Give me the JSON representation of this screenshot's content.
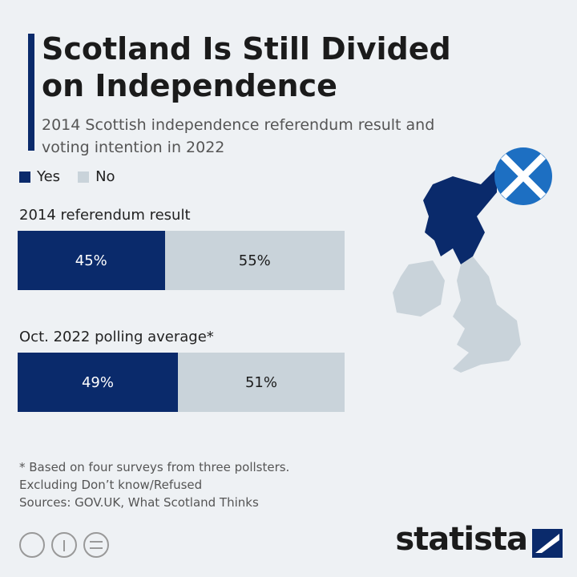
{
  "chart_data": {
    "type": "stacked-bar",
    "title": "Scotland Is Still Divided on Independence",
    "subtitle": "2014 Scottish independence referendum result and voting intention in 2022",
    "categories": [
      "2014 referendum result",
      "Oct. 2022 polling average*"
    ],
    "series": [
      {
        "name": "Yes",
        "color": "#0a2a6b",
        "label_color": "#ffffff",
        "values": [
          45,
          49
        ],
        "value_labels": [
          "45%",
          "49%"
        ]
      },
      {
        "name": "No",
        "color": "#c9d3da",
        "label_color": "#1b1b1b",
        "values": [
          55,
          51
        ],
        "value_labels": [
          "55%",
          "51%"
        ]
      }
    ],
    "notes": [
      "* Based on four surveys from three pollsters.",
      "Excluding Don’t know/Refused",
      "Sources: GOV.UK, What Scotland Thinks"
    ]
  },
  "brand": "statista"
}
